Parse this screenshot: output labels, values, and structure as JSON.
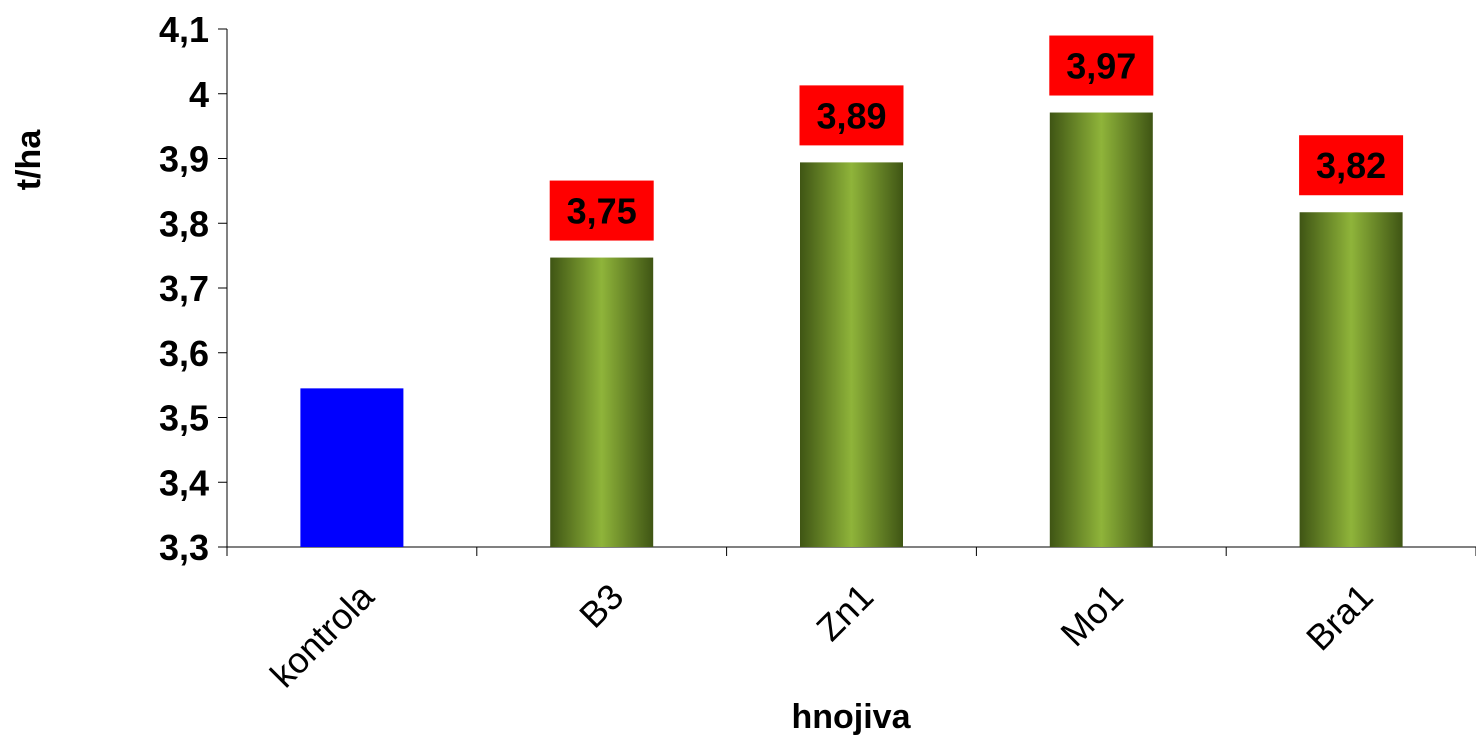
{
  "chart_data": {
    "type": "bar",
    "title": "",
    "xlabel": "hnojiva",
    "ylabel": "t/ha",
    "categories": [
      "kontrola",
      "B3",
      "Zn1",
      "Mo1",
      "Bra1"
    ],
    "values": [
      3.545,
      3.747,
      3.894,
      3.971,
      3.817
    ],
    "data_labels": [
      "",
      "3,75",
      "3,89",
      "3,97",
      "3,82"
    ],
    "ylim": [
      3.3,
      4.1
    ],
    "yticks": [
      3.3,
      3.4,
      3.5,
      3.6,
      3.7,
      3.8,
      3.9,
      4.0,
      4.1
    ],
    "ytick_labels": [
      "3,3",
      "3,4",
      "3,5",
      "3,6",
      "3,7",
      "3,8",
      "3,9",
      "4",
      "4,1"
    ],
    "grid": false,
    "legend": "none",
    "colors": {
      "control_bar": "#0000ff",
      "treatment_bar_light": "#8fb43a",
      "treatment_bar_dark": "#3f5514",
      "label_background": "#ff0000"
    }
  }
}
